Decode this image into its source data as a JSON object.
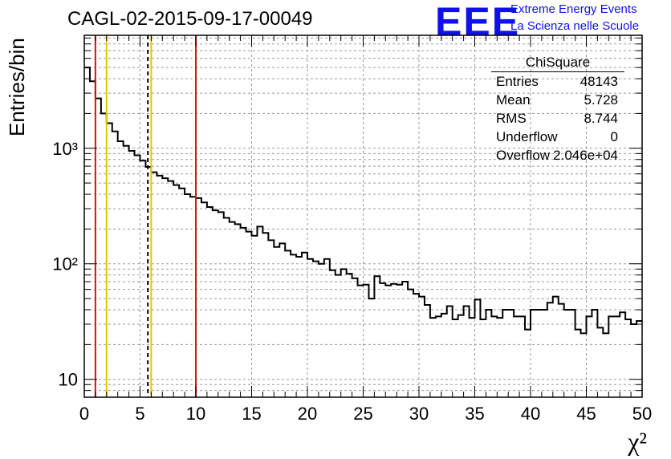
{
  "title": "CAGL-02-2015-09-17-00049",
  "logo": {
    "mark": "EEE",
    "line1": "Extreme Energy Events",
    "line2": "La Scienza nelle Scuole",
    "color": "#1010ee"
  },
  "stats_box": {
    "title": "ChiSquare",
    "rows": [
      {
        "label": "Entries",
        "value": "48143"
      },
      {
        "label": "Mean",
        "value": "5.728"
      },
      {
        "label": "RMS",
        "value": "8.744"
      },
      {
        "label": "Underflow",
        "value": "0"
      },
      {
        "label": "Overflow",
        "value": "2.046e+04"
      }
    ]
  },
  "chart_data": {
    "type": "step-histogram",
    "ylabel": "Entries/bin",
    "xlabel": "χ²",
    "xlim": [
      0,
      50
    ],
    "ylim": [
      7,
      9500
    ],
    "yscale": "log",
    "grid": true,
    "bin_width": 0.5,
    "x_ticks": [
      0,
      5,
      10,
      15,
      20,
      25,
      30,
      35,
      40,
      45,
      50
    ],
    "y_major_ticks": [
      {
        "value": 10,
        "label": "10"
      },
      {
        "value": 100,
        "label": "10²"
      },
      {
        "value": 1000,
        "label": "10³"
      }
    ],
    "bins_counts": [
      5000,
      3800,
      2700,
      2000,
      1650,
      1400,
      1150,
      1050,
      950,
      870,
      780,
      690,
      620,
      580,
      550,
      520,
      480,
      450,
      400,
      380,
      370,
      340,
      310,
      290,
      280,
      250,
      230,
      220,
      205,
      190,
      175,
      210,
      185,
      160,
      140,
      150,
      130,
      120,
      115,
      125,
      110,
      105,
      100,
      110,
      88,
      80,
      90,
      82,
      75,
      65,
      66,
      50,
      78,
      68,
      65,
      67,
      66,
      70,
      60,
      55,
      52,
      44,
      34,
      35,
      37,
      43,
      33,
      36,
      43,
      34,
      49,
      33,
      40,
      35,
      34,
      40,
      40,
      35,
      35,
      27,
      40,
      40,
      40,
      46,
      52,
      45,
      40,
      40,
      27,
      25,
      35,
      40,
      28,
      25,
      35,
      35,
      38,
      33,
      30,
      32
    ],
    "vertical_lines": [
      {
        "x": 1.0,
        "color": "#dd1111",
        "style": "solid"
      },
      {
        "x": 2.0,
        "color": "#f0c000",
        "style": "solid"
      },
      {
        "x": 5.7,
        "color": "#000000",
        "style": "dashed"
      },
      {
        "x": 6.0,
        "color": "#f0c000",
        "style": "solid"
      },
      {
        "x": 10.0,
        "color": "#dd1111",
        "style": "solid"
      }
    ]
  }
}
